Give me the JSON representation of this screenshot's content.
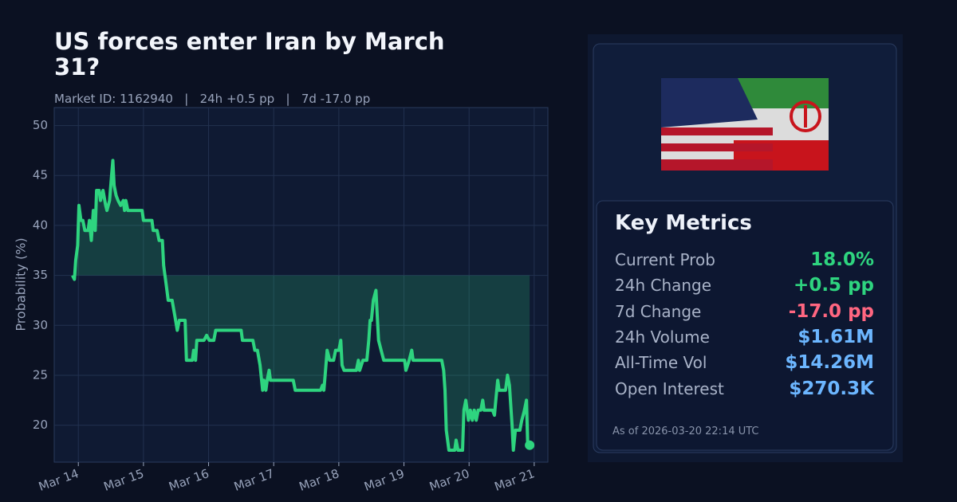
{
  "chart_data": {
    "type": "line",
    "title": "US forces enter Iran by March 31?",
    "subtitle": "Market ID: 1162940   |   24h +0.5 pp   |   7d -17.0 pp",
    "y_label": "Probability (%)",
    "xlim": [
      13.63,
      21.21
    ],
    "ylim": [
      16.3,
      51.8
    ],
    "xticks": [
      {
        "value": 14,
        "label": "Mar 14"
      },
      {
        "value": 15,
        "label": "Mar 15"
      },
      {
        "value": 16,
        "label": "Mar 16"
      },
      {
        "value": 17,
        "label": "Mar 17"
      },
      {
        "value": 18,
        "label": "Mar 18"
      },
      {
        "value": 19,
        "label": "Mar 19"
      },
      {
        "value": 20,
        "label": "Mar 20"
      },
      {
        "value": 21,
        "label": "Mar 21"
      }
    ],
    "yticks": [
      20,
      25,
      30,
      35,
      40,
      45,
      50
    ],
    "grid": true,
    "series": [
      {
        "color": "#2ed47f",
        "x": [
          13.91,
          13.94,
          13.96,
          13.99,
          14.01,
          14.04,
          14.07,
          14.1,
          14.15,
          14.17,
          14.2,
          14.23,
          14.26,
          14.28,
          14.32,
          14.34,
          14.38,
          14.42,
          14.44,
          14.48,
          14.51,
          14.53,
          14.55,
          14.58,
          14.61,
          14.65,
          14.69,
          14.71,
          14.73,
          14.76,
          14.98,
          15.0,
          15.13,
          15.15,
          15.21,
          15.24,
          15.29,
          15.31,
          15.35,
          15.38,
          15.44,
          15.48,
          15.52,
          15.55,
          15.64,
          15.66,
          15.75,
          15.77,
          15.8,
          15.82,
          15.93,
          15.97,
          16.01,
          16.08,
          16.11,
          16.5,
          16.52,
          16.68,
          16.71,
          16.75,
          16.79,
          16.83,
          16.85,
          16.88,
          16.9,
          16.93,
          16.95,
          17.3,
          17.33,
          17.72,
          17.75,
          17.77,
          17.79,
          17.82,
          17.86,
          17.92,
          17.95,
          18.0,
          18.03,
          18.05,
          18.08,
          18.27,
          18.3,
          18.32,
          18.37,
          18.43,
          18.46,
          18.48,
          18.5,
          18.53,
          18.57,
          18.59,
          18.61,
          18.65,
          18.69,
          18.77,
          19.01,
          19.03,
          19.08,
          19.12,
          19.14,
          19.58,
          19.61,
          19.63,
          19.65,
          19.69,
          19.78,
          19.8,
          19.83,
          19.9,
          19.92,
          19.95,
          19.99,
          20.02,
          20.05,
          20.08,
          20.11,
          20.14,
          20.18,
          20.21,
          20.23,
          20.36,
          20.39,
          20.41,
          20.44,
          20.46,
          20.56,
          20.59,
          20.62,
          20.66,
          20.68,
          20.71,
          20.78,
          20.81,
          20.83,
          20.85,
          20.88,
          20.9,
          20.93
        ],
        "values": [
          35,
          34.6,
          36.5,
          38,
          42,
          40.5,
          40.5,
          39.5,
          39.5,
          40.5,
          38.5,
          41.5,
          39.5,
          43.5,
          43.5,
          42.5,
          43.5,
          42,
          41.5,
          42.5,
          45,
          46.5,
          44,
          43,
          42.5,
          42,
          42.5,
          41.5,
          42.5,
          41.5,
          41.5,
          40.5,
          40.5,
          39.5,
          39.5,
          38.5,
          38.5,
          36,
          34,
          32.5,
          32.5,
          31,
          29.5,
          30.5,
          30.5,
          26.5,
          26.5,
          27.5,
          26.5,
          28.5,
          28.5,
          29,
          28.5,
          28.5,
          29.5,
          29.5,
          28.5,
          28.5,
          27.5,
          27.5,
          26,
          23.5,
          24.5,
          23.5,
          24.5,
          25.5,
          24.5,
          24.5,
          23.5,
          23.5,
          24,
          23.5,
          25,
          27.5,
          26.5,
          26.5,
          27.5,
          27.5,
          28.5,
          26,
          25.5,
          25.5,
          26.5,
          25.5,
          26.5,
          26.5,
          28.5,
          30.5,
          30.5,
          32.5,
          33.5,
          31,
          28.5,
          27.5,
          26.5,
          26.5,
          26.5,
          25.5,
          26.5,
          27.5,
          26.5,
          26.5,
          25.5,
          23.5,
          19.5,
          17.5,
          17.5,
          18.5,
          17.5,
          17.5,
          21.5,
          22.5,
          20.5,
          21.5,
          20.5,
          21.5,
          20.5,
          21.5,
          21.5,
          22.5,
          21.5,
          21.5,
          21,
          22.5,
          24.5,
          23.5,
          23.5,
          25,
          24,
          20,
          17.5,
          19.5,
          19.5,
          20.5,
          21,
          21.5,
          22.5,
          18,
          18
        ]
      }
    ]
  },
  "panel": {
    "heading": "Key Metrics",
    "as_of": "As of 2026-03-20 22:14 UTC",
    "metrics": [
      {
        "label": "Current Prob",
        "value": "18.0%",
        "color": "#2ed47f"
      },
      {
        "label": "24h Change",
        "value": "+0.5 pp",
        "color": "#2ed47f"
      },
      {
        "label": "7d Change",
        "value": "-17.0 pp",
        "color": "#ff6680"
      },
      {
        "label": "24h Volume",
        "value": "$1.61M",
        "color": "#6cb6ff"
      },
      {
        "label": "All-Time Vol",
        "value": "$14.26M",
        "color": "#6cb6ff"
      },
      {
        "label": "Open Interest",
        "value": "$270.3K",
        "color": "#6cb6ff"
      }
    ]
  }
}
